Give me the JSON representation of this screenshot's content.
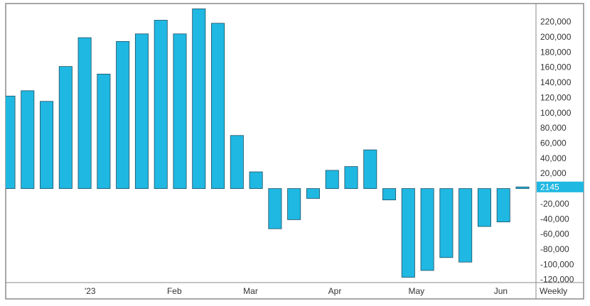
{
  "chart_data": {
    "type": "bar",
    "interval_label": "Weekly",
    "x": [
      "2022-12-02",
      "2022-12-09",
      "2022-12-16",
      "2022-12-23",
      "2022-12-30",
      "2023-01-06",
      "2023-01-13",
      "2023-01-20",
      "2023-01-27",
      "2023-02-03",
      "2023-02-10",
      "2023-02-17",
      "2023-02-24",
      "2023-03-03",
      "2023-03-10",
      "2023-03-17",
      "2023-03-24",
      "2023-03-31",
      "2023-04-07",
      "2023-04-14",
      "2023-04-21",
      "2023-04-28",
      "2023-05-05",
      "2023-05-12",
      "2023-05-19",
      "2023-05-26",
      "2023-06-02",
      "2023-06-09"
    ],
    "values": [
      122000,
      129000,
      115000,
      161000,
      199000,
      151000,
      194000,
      204000,
      222000,
      204000,
      237000,
      218000,
      70000,
      22000,
      -53000,
      -41000,
      -13000,
      24000,
      29000,
      51000,
      -15000,
      -117000,
      -108000,
      -91000,
      -97000,
      -50000,
      -44000,
      2145
    ],
    "last_value_label": "2145",
    "ylim": [
      -124000,
      244000
    ],
    "y_ticks": [
      220000,
      200000,
      180000,
      160000,
      140000,
      120000,
      100000,
      80000,
      60000,
      40000,
      20000,
      -20000,
      -40000,
      -60000,
      -80000,
      -100000,
      -120000
    ],
    "y_tick_labels": [
      "220,000",
      "200,000",
      "180,000",
      "160,000",
      "140,000",
      "120,000",
      "100,000",
      "80,000",
      "60,000",
      "40,000",
      "20,000",
      "-20,000",
      "-40,000",
      "-60,000",
      "-80,000",
      "-100,000",
      "-120,000"
    ],
    "x_tick_labels": [
      {
        "label": "'23",
        "at": "2023-01-01"
      },
      {
        "label": "Feb",
        "at": "2023-02-01"
      },
      {
        "label": "Mar",
        "at": "2023-03-01"
      },
      {
        "label": "Apr",
        "at": "2023-04-01"
      },
      {
        "label": "May",
        "at": "2023-05-01"
      },
      {
        "label": "Jun",
        "at": "2023-06-01"
      }
    ],
    "grid": false,
    "legend": "none",
    "colors": {
      "bar": "#1fb8e2",
      "bar_stroke": "#1d4f63",
      "label_bg": "#1fb8e2",
      "label_text": "#ffffff",
      "frame": "#8a8a8a"
    }
  }
}
